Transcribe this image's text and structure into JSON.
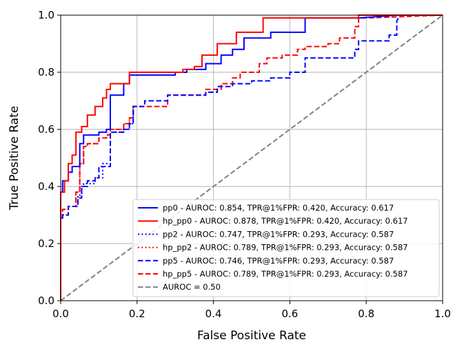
{
  "chart_data": {
    "type": "line",
    "title": "",
    "xlabel": "False Positive Rate",
    "ylabel": "True Positive Rate",
    "xlim": [
      0.0,
      1.0
    ],
    "ylim": [
      0.0,
      1.0
    ],
    "xticks": [
      "0.0",
      "0.2",
      "0.4",
      "0.6",
      "0.8",
      "1.0"
    ],
    "yticks": [
      "0.0",
      "0.2",
      "0.4",
      "0.6",
      "0.8",
      "1.0"
    ],
    "grid": true,
    "legend_position": "lower-right",
    "series": [
      {
        "name": "pp0 - AUROC: 0.854, TPR@1%FPR: 0.420, Accuracy: 0.617",
        "color": "#0000ff",
        "dash": "solid",
        "x": [
          0,
          0,
          0.005,
          0.005,
          0.02,
          0.02,
          0.03,
          0.03,
          0.05,
          0.05,
          0.06,
          0.06,
          0.1,
          0.1,
          0.12,
          0.12,
          0.13,
          0.13,
          0.165,
          0.165,
          0.18,
          0.18,
          0.3,
          0.3,
          0.33,
          0.33,
          0.38,
          0.38,
          0.42,
          0.42,
          0.45,
          0.45,
          0.48,
          0.48,
          0.55,
          0.55,
          0.6,
          0.6,
          0.64,
          0.64,
          0.78,
          0.78,
          0.88,
          1.0
        ],
        "y": [
          0,
          0.38,
          0.38,
          0.42,
          0.42,
          0.45,
          0.45,
          0.47,
          0.47,
          0.55,
          0.55,
          0.58,
          0.58,
          0.59,
          0.59,
          0.6,
          0.6,
          0.72,
          0.72,
          0.76,
          0.76,
          0.79,
          0.79,
          0.8,
          0.8,
          0.81,
          0.81,
          0.83,
          0.83,
          0.86,
          0.86,
          0.88,
          0.88,
          0.92,
          0.92,
          0.94,
          0.94,
          0.94,
          0.94,
          0.99,
          0.99,
          0.99,
          1.0,
          1.0
        ]
      },
      {
        "name": "hp_pp0 - AUROC: 0.878, TPR@1%FPR: 0.420, Accuracy: 0.617",
        "color": "#ff0000",
        "dash": "solid",
        "x": [
          0,
          0,
          0.01,
          0.01,
          0.02,
          0.02,
          0.03,
          0.03,
          0.04,
          0.04,
          0.055,
          0.055,
          0.07,
          0.07,
          0.09,
          0.09,
          0.11,
          0.11,
          0.12,
          0.12,
          0.13,
          0.13,
          0.18,
          0.18,
          0.32,
          0.32,
          0.35,
          0.35,
          0.37,
          0.37,
          0.41,
          0.41,
          0.46,
          0.46,
          0.53,
          0.53,
          0.58,
          0.58,
          0.64,
          0.64,
          0.78,
          0.78,
          1.0
        ],
        "y": [
          0,
          0.38,
          0.38,
          0.42,
          0.42,
          0.48,
          0.48,
          0.51,
          0.51,
          0.59,
          0.59,
          0.61,
          0.61,
          0.65,
          0.65,
          0.68,
          0.68,
          0.71,
          0.71,
          0.74,
          0.74,
          0.76,
          0.76,
          0.8,
          0.8,
          0.81,
          0.81,
          0.82,
          0.82,
          0.86,
          0.86,
          0.9,
          0.9,
          0.94,
          0.94,
          0.99,
          0.99,
          0.99,
          0.99,
          0.99,
          0.99,
          1.0,
          1.0
        ]
      },
      {
        "name": "pp2 - AUROC: 0.747, TPR@1%FPR: 0.293, Accuracy: 0.587",
        "color": "#0000ff",
        "dash": "dotted",
        "x": [
          0,
          0,
          0.005,
          0.005,
          0.02,
          0.02,
          0.045,
          0.045,
          0.055,
          0.055,
          0.06,
          0.06,
          0.09,
          0.09,
          0.11,
          0.11,
          0.13,
          0.13,
          0.165,
          0.165,
          0.18,
          0.18,
          0.19,
          0.19,
          0.2
        ],
        "y": [
          0,
          0.29,
          0.29,
          0.3,
          0.3,
          0.33,
          0.33,
          0.37,
          0.37,
          0.4,
          0.4,
          0.41,
          0.41,
          0.43,
          0.43,
          0.48,
          0.48,
          0.59,
          0.59,
          0.6,
          0.6,
          0.62,
          0.62,
          0.68,
          0.68
        ]
      },
      {
        "name": "hp_pp2 - AUROC: 0.789, TPR@1%FPR: 0.293, Accuracy: 0.587",
        "color": "#ff0000",
        "dash": "dotted",
        "x": [
          0,
          0,
          0.005,
          0.005,
          0.02,
          0.02,
          0.04,
          0.04,
          0.05,
          0.05,
          0.06,
          0.06,
          0.07,
          0.07,
          0.1,
          0.1,
          0.12,
          0.12,
          0.13,
          0.13,
          0.165,
          0.165,
          0.18,
          0.18,
          0.19,
          0.19,
          0.2
        ],
        "y": [
          0,
          0.29,
          0.29,
          0.32,
          0.32,
          0.33,
          0.33,
          0.38,
          0.38,
          0.48,
          0.48,
          0.54,
          0.54,
          0.55,
          0.55,
          0.57,
          0.57,
          0.58,
          0.58,
          0.6,
          0.6,
          0.62,
          0.62,
          0.64,
          0.64,
          0.68,
          0.68
        ]
      },
      {
        "name": "pp5 - AUROC: 0.746, TPR@1%FPR: 0.293, Accuracy: 0.587",
        "color": "#0000ff",
        "dash": "dashed",
        "x": [
          0,
          0,
          0.005,
          0.005,
          0.02,
          0.02,
          0.045,
          0.045,
          0.055,
          0.055,
          0.07,
          0.07,
          0.09,
          0.09,
          0.1,
          0.1,
          0.13,
          0.13,
          0.165,
          0.165,
          0.18,
          0.18,
          0.19,
          0.19,
          0.22,
          0.22,
          0.28,
          0.28,
          0.38,
          0.38,
          0.41,
          0.41,
          0.45,
          0.45,
          0.5,
          0.5,
          0.55,
          0.55,
          0.6,
          0.6,
          0.64,
          0.64,
          0.75,
          0.75,
          0.77,
          0.77,
          0.78,
          0.78,
          0.86,
          0.86,
          0.88,
          0.88,
          0.89,
          1.0
        ],
        "y": [
          0,
          0.29,
          0.29,
          0.3,
          0.3,
          0.33,
          0.33,
          0.36,
          0.36,
          0.4,
          0.4,
          0.42,
          0.42,
          0.43,
          0.43,
          0.47,
          0.47,
          0.59,
          0.59,
          0.6,
          0.6,
          0.62,
          0.62,
          0.68,
          0.68,
          0.7,
          0.7,
          0.72,
          0.72,
          0.73,
          0.73,
          0.75,
          0.75,
          0.76,
          0.76,
          0.77,
          0.77,
          0.78,
          0.78,
          0.8,
          0.8,
          0.85,
          0.85,
          0.85,
          0.85,
          0.88,
          0.88,
          0.91,
          0.91,
          0.93,
          0.93,
          0.98,
          1.0,
          1.0
        ]
      },
      {
        "name": "hp_pp5 - AUROC: 0.789, TPR@1%FPR: 0.293, Accuracy: 0.587",
        "color": "#ff0000",
        "dash": "dashed",
        "x": [
          0,
          0,
          0.005,
          0.005,
          0.02,
          0.02,
          0.04,
          0.04,
          0.05,
          0.05,
          0.06,
          0.06,
          0.07,
          0.07,
          0.1,
          0.1,
          0.12,
          0.12,
          0.13,
          0.13,
          0.165,
          0.165,
          0.18,
          0.18,
          0.19,
          0.19,
          0.28,
          0.28,
          0.38,
          0.38,
          0.42,
          0.42,
          0.45,
          0.45,
          0.47,
          0.47,
          0.52,
          0.52,
          0.54,
          0.54,
          0.58,
          0.58,
          0.62,
          0.62,
          0.64,
          0.64,
          0.7,
          0.7,
          0.73,
          0.73,
          0.77,
          0.77,
          0.78,
          0.78,
          0.8,
          1.0
        ],
        "y": [
          0,
          0.29,
          0.29,
          0.32,
          0.32,
          0.33,
          0.33,
          0.38,
          0.38,
          0.48,
          0.48,
          0.54,
          0.54,
          0.55,
          0.55,
          0.57,
          0.57,
          0.58,
          0.58,
          0.6,
          0.6,
          0.62,
          0.62,
          0.64,
          0.64,
          0.68,
          0.68,
          0.72,
          0.72,
          0.74,
          0.74,
          0.76,
          0.76,
          0.78,
          0.78,
          0.8,
          0.8,
          0.83,
          0.83,
          0.85,
          0.85,
          0.86,
          0.86,
          0.88,
          0.88,
          0.89,
          0.89,
          0.9,
          0.9,
          0.92,
          0.92,
          0.96,
          0.96,
          0.99,
          0.99,
          1.0
        ]
      },
      {
        "name": "AUROC = 0.50",
        "color": "#808080",
        "dash": "dashed",
        "x": [
          0,
          1
        ],
        "y": [
          0,
          1
        ]
      }
    ]
  }
}
